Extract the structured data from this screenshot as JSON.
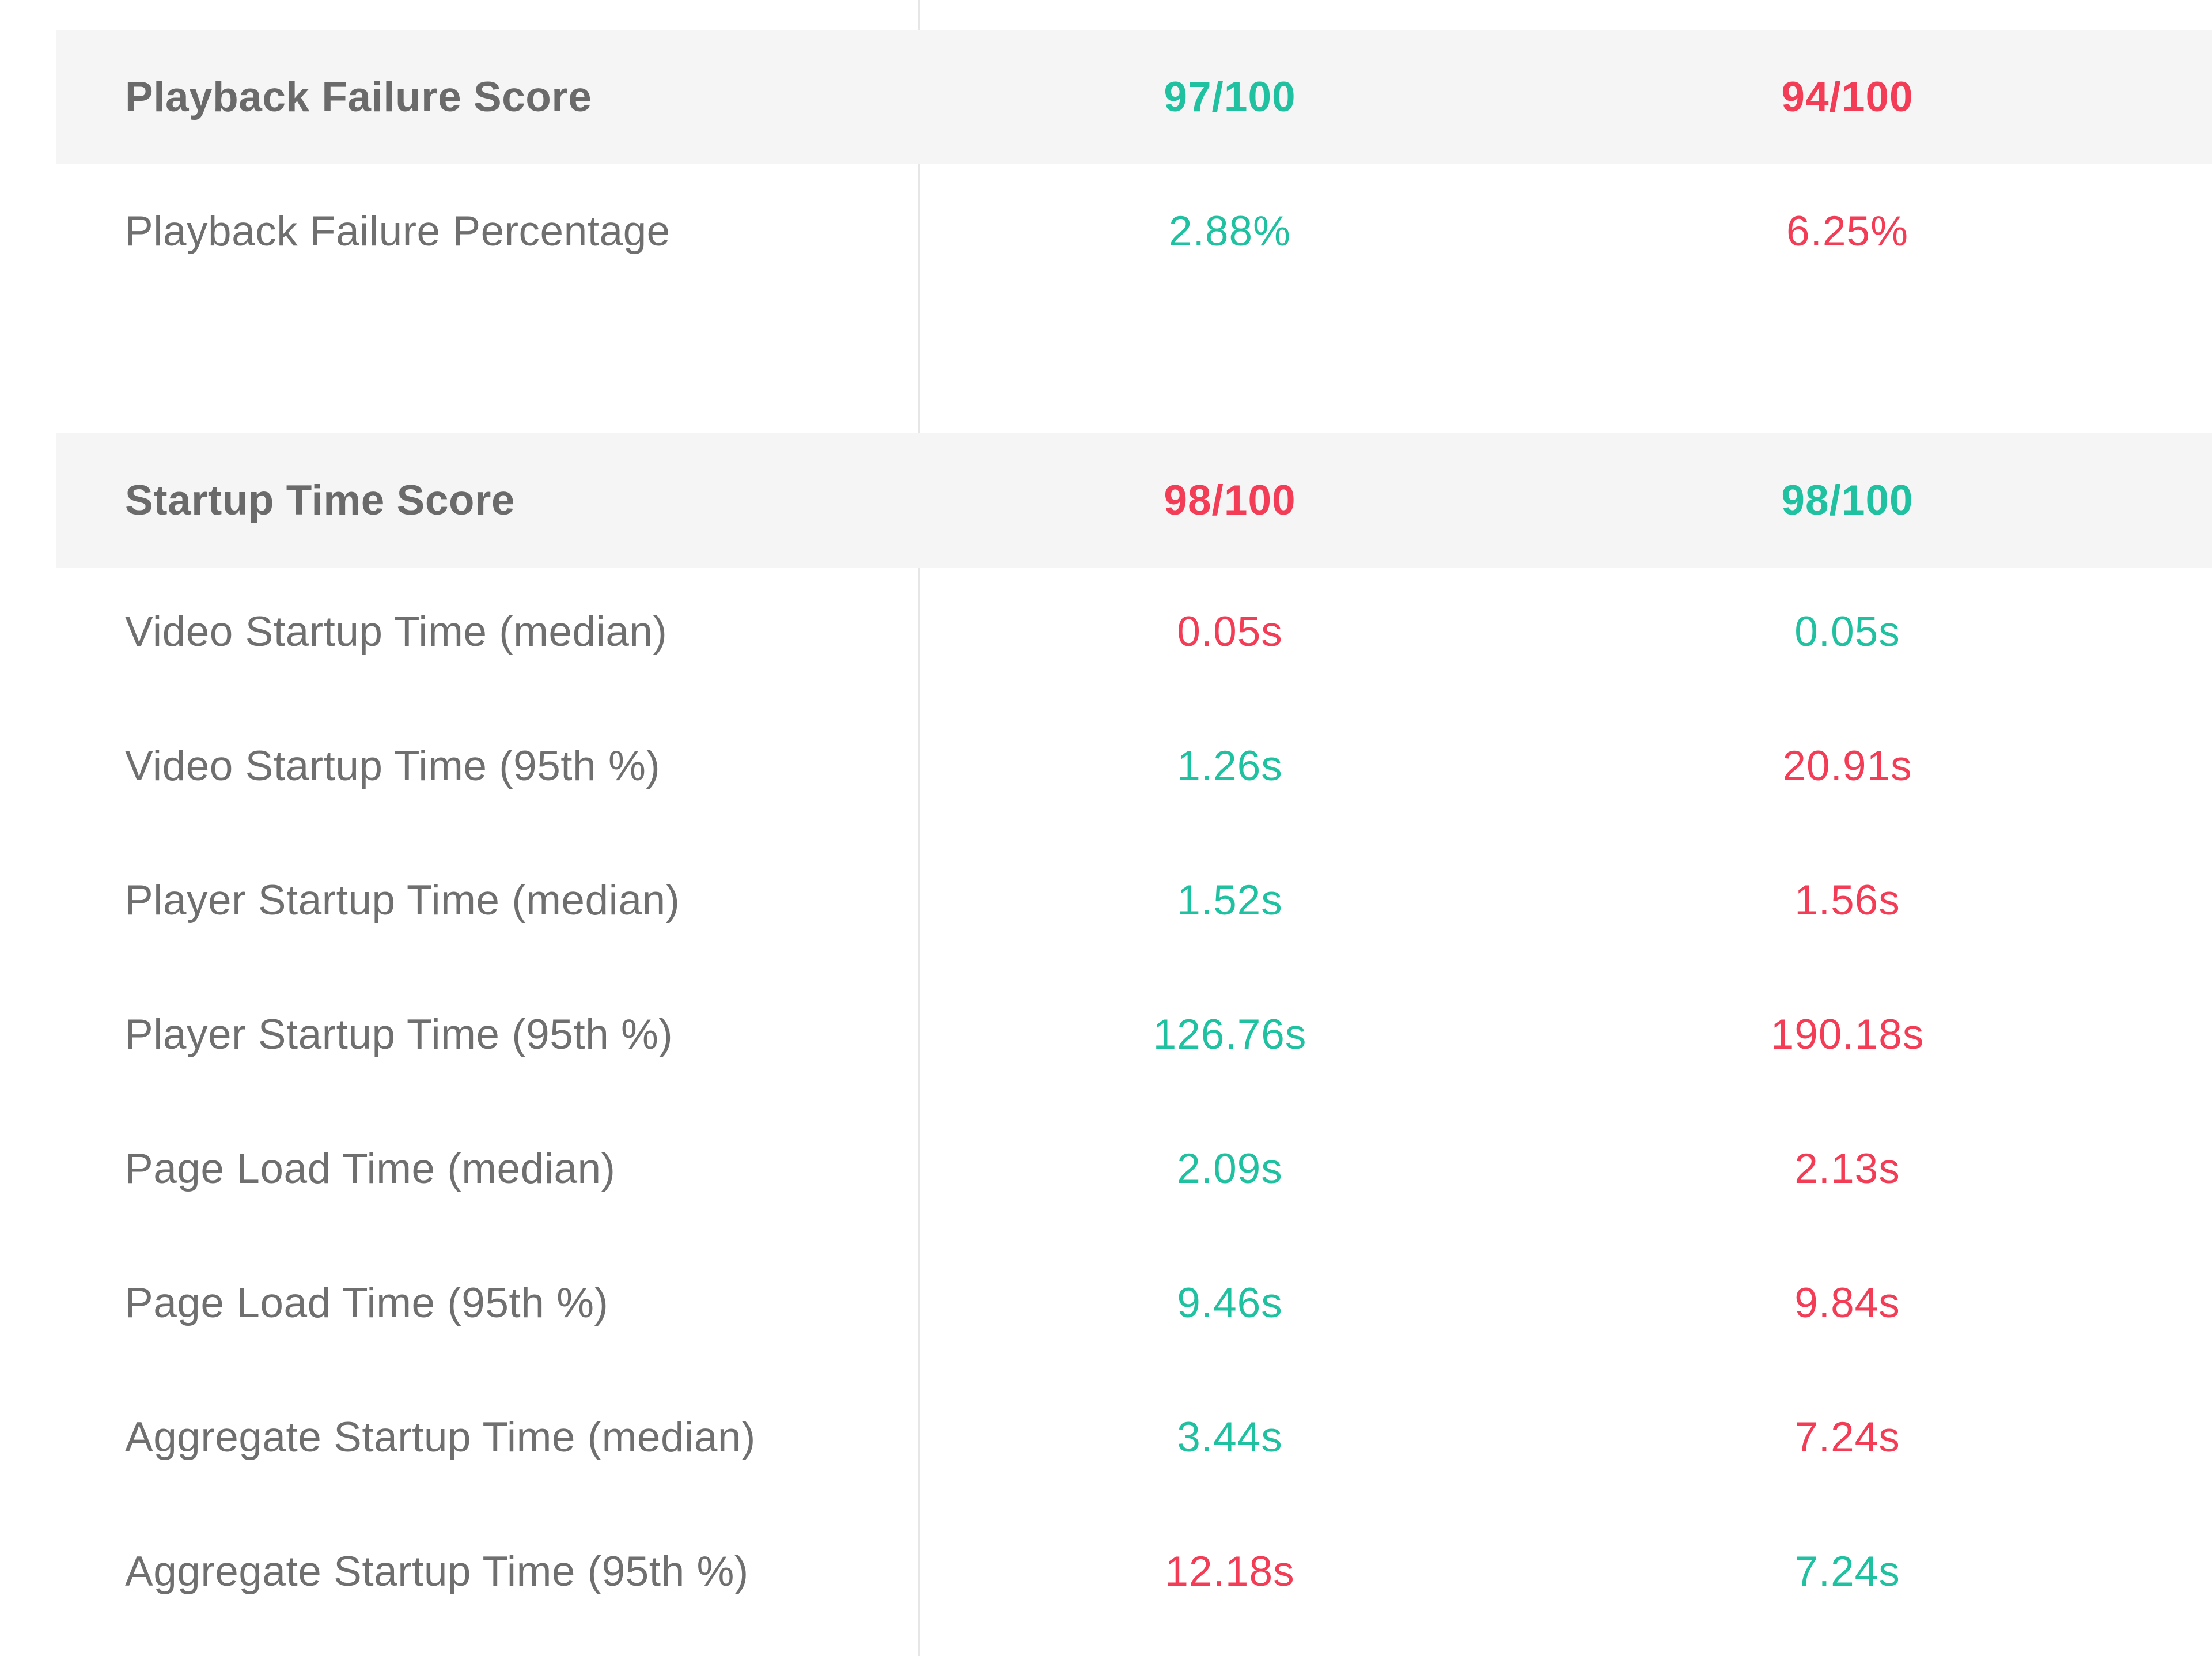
{
  "sections": [
    {
      "header": {
        "label": "Playback Failure Score",
        "col_a": "97/100",
        "col_a_status": "good",
        "col_b": "94/100",
        "col_b_status": "bad"
      },
      "rows": [
        {
          "label": "Playback Failure Percentage",
          "col_a": "2.88%",
          "col_a_status": "good",
          "col_b": "6.25%",
          "col_b_status": "bad"
        }
      ]
    },
    {
      "header": {
        "label": "Startup Time Score",
        "col_a": "98/100",
        "col_a_status": "bad",
        "col_b": "98/100",
        "col_b_status": "good"
      },
      "rows": [
        {
          "label": "Video Startup Time (median)",
          "col_a": "0.05s",
          "col_a_status": "bad",
          "col_b": "0.05s",
          "col_b_status": "good"
        },
        {
          "label": "Video Startup Time (95th %)",
          "col_a": "1.26s",
          "col_a_status": "good",
          "col_b": "20.91s",
          "col_b_status": "bad"
        },
        {
          "label": "Player Startup Time (median)",
          "col_a": "1.52s",
          "col_a_status": "good",
          "col_b": "1.56s",
          "col_b_status": "bad"
        },
        {
          "label": "Player Startup Time (95th %)",
          "col_a": "126.76s",
          "col_a_status": "good",
          "col_b": "190.18s",
          "col_b_status": "bad"
        },
        {
          "label": "Page Load Time (median)",
          "col_a": "2.09s",
          "col_a_status": "good",
          "col_b": "2.13s",
          "col_b_status": "bad"
        },
        {
          "label": "Page Load Time (95th %)",
          "col_a": "9.46s",
          "col_a_status": "good",
          "col_b": "9.84s",
          "col_b_status": "bad"
        },
        {
          "label": "Aggregate Startup Time (median)",
          "col_a": "3.44s",
          "col_a_status": "good",
          "col_b": "7.24s",
          "col_b_status": "bad"
        },
        {
          "label": "Aggregate Startup Time (95th %)",
          "col_a": "12.18s",
          "col_a_status": "bad",
          "col_b": "7.24s",
          "col_b_status": "good"
        }
      ]
    }
  ],
  "colors": {
    "good": "#1fc1a0",
    "bad": "#f33c55",
    "header_bg": "#f5f5f5",
    "label_text": "#6f6f6f",
    "divider": "#e6e6e6"
  }
}
